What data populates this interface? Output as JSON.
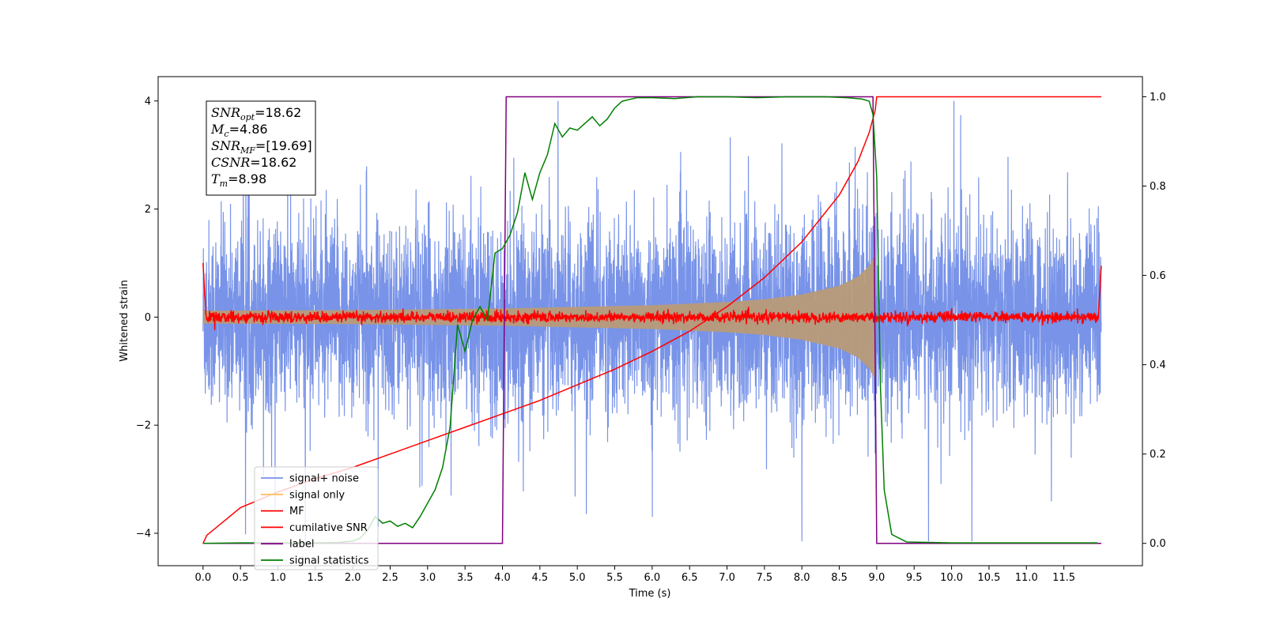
{
  "chart_data": {
    "type": "line",
    "title": "",
    "xlabel": "Time (s)",
    "ylabel": "Whitened strain",
    "xlim": [
      -0.6,
      12.55
    ],
    "ylim": [
      -4.6,
      4.45
    ],
    "ylim_right": [
      -0.05,
      1.045
    ],
    "grid": false,
    "legend_position": "lower-left",
    "x_ticks": [
      0.0,
      0.5,
      1.0,
      1.5,
      2.0,
      2.5,
      3.0,
      3.5,
      4.0,
      4.5,
      5.0,
      5.5,
      6.0,
      6.5,
      7.0,
      7.5,
      8.0,
      8.5,
      9.0,
      9.5,
      10.0,
      10.5,
      11.0,
      11.5
    ],
    "x_tick_labels": [
      "0.0",
      "0.5",
      "1.0",
      "1.5",
      "2.0",
      "2.5",
      "3.0",
      "3.5",
      "4.0",
      "4.5",
      "5.0",
      "5.5",
      "6.0",
      "6.5",
      "7.0",
      "7.5",
      "8.0",
      "8.5",
      "9.0",
      "9.5",
      "10.0",
      "10.5",
      "11.0",
      "11.5"
    ],
    "y_ticks": [
      -4,
      -2,
      0,
      2,
      4
    ],
    "y_tick_labels": [
      "−4",
      "−2",
      "0",
      "2",
      "4"
    ],
    "y_right_ticks": [
      0.0,
      0.2,
      0.4,
      0.6,
      0.8,
      1.0
    ],
    "y_right_tick_labels": [
      "0.0",
      "0.2",
      "0.4",
      "0.6",
      "0.8",
      "1.0"
    ],
    "annotation": {
      "lines": [
        {
          "sym": "SNR",
          "sub": "opt",
          "value": "=18.62"
        },
        {
          "sym": "M",
          "sub": "c",
          "value": "=4.86"
        },
        {
          "sym": "SNR",
          "sub": "MF",
          "value": "=[19.69]"
        },
        {
          "sym": "CSNR",
          "sub": "",
          "value": "=18.62"
        },
        {
          "sym": "T",
          "sub": "m",
          "value": "=8.98"
        }
      ]
    },
    "series": [
      {
        "name": "signal+ noise",
        "color": "#7893e8",
        "axis": "left",
        "x_range": [
          0.0,
          12.0
        ],
        "noise_sigma": 1.0,
        "signal_merger": 8.98
      },
      {
        "name": "signal only",
        "color": "#ffbf66",
        "axis": "left",
        "x_range": [
          0.0,
          9.0
        ],
        "amplitude_envelope": {
          "x": [
            0.0,
            2.0,
            4.0,
            6.0,
            7.0,
            7.5,
            8.0,
            8.5,
            8.75,
            8.9,
            8.98
          ],
          "y": [
            0.12,
            0.13,
            0.16,
            0.22,
            0.28,
            0.33,
            0.42,
            0.58,
            0.75,
            0.95,
            1.15
          ]
        }
      },
      {
        "name": "MF",
        "color": "#ff0000",
        "axis": "left",
        "x_range": [
          0.0,
          12.0
        ],
        "noise_sigma": 0.05,
        "edge_value": 1.0
      },
      {
        "name": "cumilative SNR",
        "color": "#ff0000",
        "axis": "right",
        "x": [
          0.0,
          0.05,
          0.5,
          1.0,
          1.5,
          2.0,
          2.5,
          3.0,
          3.5,
          4.0,
          4.5,
          5.0,
          5.5,
          6.0,
          6.5,
          7.0,
          7.5,
          8.0,
          8.5,
          8.75,
          8.9,
          8.98,
          9.0,
          12.0
        ],
        "y": [
          0.0,
          0.018,
          0.08,
          0.115,
          0.145,
          0.17,
          0.2,
          0.23,
          0.26,
          0.29,
          0.32,
          0.355,
          0.39,
          0.43,
          0.475,
          0.53,
          0.595,
          0.675,
          0.78,
          0.855,
          0.92,
          0.97,
          1.0,
          1.0
        ]
      },
      {
        "name": "label",
        "color": "#800080",
        "axis": "right",
        "x": [
          0.0,
          4.0,
          4.05,
          8.95,
          9.0,
          12.0
        ],
        "y": [
          0.0,
          0.0,
          1.0,
          1.0,
          0.0,
          0.0
        ]
      },
      {
        "name": "signal statistics",
        "color": "#008000",
        "axis": "right",
        "x": [
          0.0,
          0.5,
          1.0,
          1.5,
          1.8,
          2.0,
          2.1,
          2.2,
          2.3,
          2.4,
          2.5,
          2.6,
          2.7,
          2.8,
          2.9,
          3.0,
          3.1,
          3.2,
          3.3,
          3.4,
          3.5,
          3.6,
          3.7,
          3.8,
          3.9,
          4.0,
          4.1,
          4.2,
          4.3,
          4.4,
          4.5,
          4.6,
          4.7,
          4.8,
          4.9,
          5.0,
          5.1,
          5.2,
          5.3,
          5.4,
          5.5,
          5.6,
          5.8,
          6.0,
          6.3,
          6.6,
          7.0,
          7.4,
          7.8,
          8.0,
          8.3,
          8.6,
          8.8,
          8.9,
          8.95,
          9.0,
          9.05,
          9.1,
          9.2,
          9.4,
          10.0,
          11.0,
          11.95
        ],
        "y": [
          0.0,
          0.001,
          0.001,
          0.001,
          0.002,
          0.005,
          0.012,
          0.03,
          0.06,
          0.045,
          0.05,
          0.038,
          0.045,
          0.035,
          0.06,
          0.09,
          0.12,
          0.17,
          0.26,
          0.49,
          0.43,
          0.5,
          0.53,
          0.5,
          0.65,
          0.66,
          0.69,
          0.74,
          0.83,
          0.77,
          0.83,
          0.87,
          0.94,
          0.91,
          0.93,
          0.925,
          0.94,
          0.955,
          0.935,
          0.95,
          0.975,
          0.99,
          0.998,
          0.998,
          0.996,
          1.0,
          1.0,
          0.998,
          1.0,
          1.0,
          1.0,
          0.998,
          0.995,
          0.99,
          0.96,
          0.82,
          0.35,
          0.12,
          0.02,
          0.003,
          0.001,
          0.001,
          0.001
        ]
      }
    ]
  }
}
